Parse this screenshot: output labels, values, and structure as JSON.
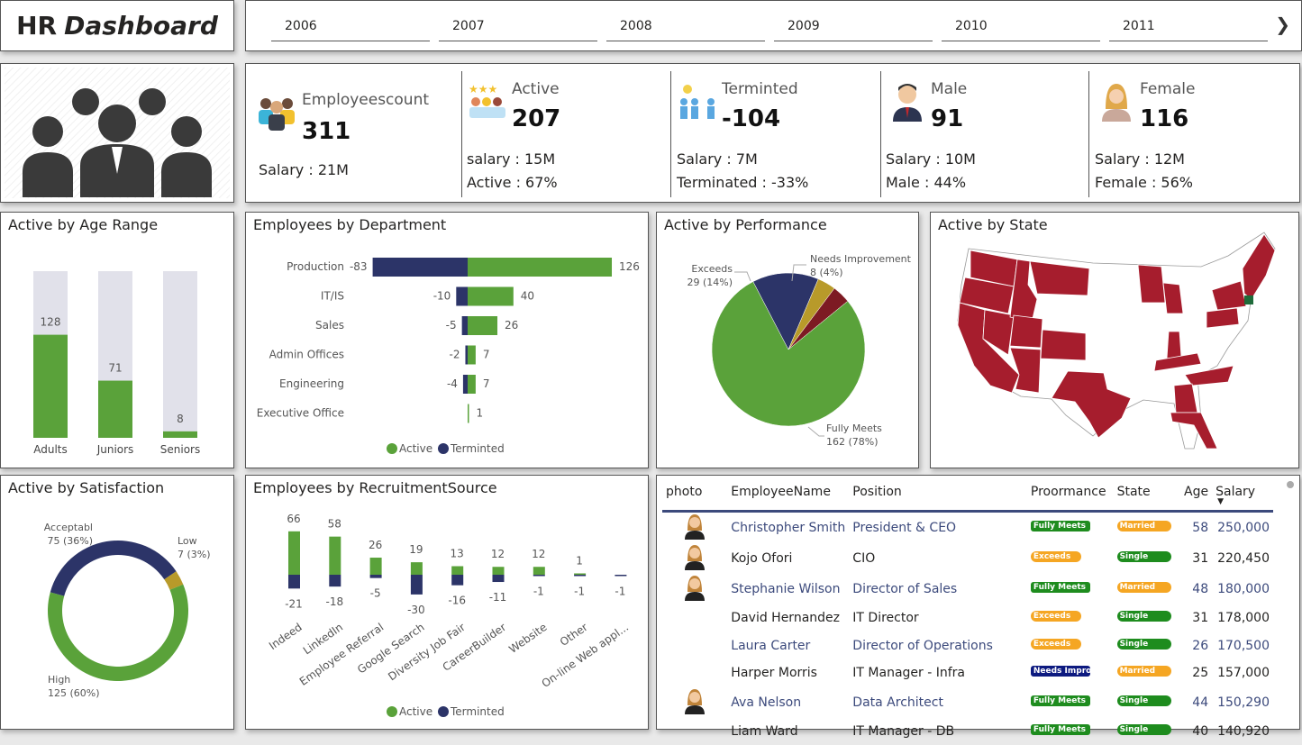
{
  "header": {
    "title_plain": "HR",
    "title_italic": "Dashboard",
    "years": [
      "2006",
      "2007",
      "2008",
      "2009",
      "2010",
      "2011"
    ],
    "next_icon": "chevron-right-icon"
  },
  "kpis": [
    {
      "label": "Employeescount",
      "value": "311",
      "line1": "Salary : 21M",
      "icon": "people-group-icon"
    },
    {
      "label": "Active",
      "value": "207",
      "line1": "salary : 15M",
      "line2": "Active : 67%",
      "icon": "stars-people-icon"
    },
    {
      "label": "Terminted",
      "value": "-104",
      "line1": "Salary : 7M",
      "line2": "Terminated : -33%",
      "icon": "people-transfer-icon"
    },
    {
      "label": "Male",
      "value": "91",
      "line1": "Salary : 10M",
      "line2": "Male : 44%",
      "icon": "male-avatar-icon"
    },
    {
      "label": "Female",
      "value": "116",
      "line1": "Salary : 12M",
      "line2": "Female : 56%",
      "icon": "female-avatar-icon"
    }
  ],
  "colors": {
    "active": "#5aa23a",
    "terminated": "#2c3468",
    "background_bar": "#e1e1ea",
    "map_state": "#a61d2d",
    "needs": "#7d1a23",
    "gold": "#b89a2a"
  },
  "chart_data": [
    {
      "type": "bar",
      "title": "Active by Age Range",
      "categories": [
        "Adults",
        "Juniors",
        "Seniors"
      ],
      "values": [
        128,
        71,
        8
      ],
      "ylim": [
        0,
        207
      ]
    },
    {
      "type": "bar",
      "title": "Employees by Department",
      "orientation": "horizontal",
      "categories": [
        "Production",
        "IT/IS",
        "Sales",
        "Admin Offices",
        "Engineering",
        "Executive Office"
      ],
      "series": [
        {
          "name": "Active",
          "values": [
            126,
            40,
            26,
            7,
            7,
            1
          ]
        },
        {
          "name": "Terminted",
          "values": [
            -83,
            -10,
            -5,
            -2,
            -4,
            null
          ]
        }
      ],
      "legend": "bottom"
    },
    {
      "type": "pie",
      "title": "Active by Performance",
      "slices": [
        {
          "label": "Needs Improvement",
          "value": 8,
          "text": "8 (4%)",
          "color": "#7d1a23"
        },
        {
          "label": "Fully Meets",
          "value": 162,
          "text": "162 (78%)",
          "color": "#5aa23a"
        },
        {
          "label": "Exceeds",
          "value": 29,
          "text": "29 (14%)",
          "color": "#2c3468"
        },
        {
          "label": "",
          "value": 8,
          "text": "",
          "color": "#b89a2a"
        }
      ]
    },
    {
      "type": "pie",
      "title": "Active by Satisfaction",
      "donut": true,
      "slices": [
        {
          "label": "Low",
          "value": 7,
          "text": "7 (3%)",
          "color": "#b89a2a"
        },
        {
          "label": "High",
          "value": 125,
          "text": "125 (60%)",
          "color": "#5aa23a"
        },
        {
          "label": "Acceptabl",
          "value": 75,
          "text": "75 (36%)",
          "color": "#2c3468"
        }
      ]
    },
    {
      "type": "bar",
      "title": "Employees by RecruitmentSource",
      "categories": [
        "Indeed",
        "LinkedIn",
        "Employee Referral",
        "Google Search",
        "Diversity Job Fair",
        "CareerBuilder",
        "Website",
        "Other",
        "On-line Web appl..."
      ],
      "series": [
        {
          "name": "Active",
          "values": [
            66,
            58,
            26,
            19,
            13,
            12,
            12,
            1,
            null
          ]
        },
        {
          "name": "Terminted",
          "values": [
            -21,
            -18,
            -5,
            -30,
            -16,
            -11,
            -1,
            -1,
            -1
          ]
        }
      ],
      "legend": "bottom"
    }
  ],
  "map": {
    "title": "Active by State"
  },
  "table": {
    "columns": [
      "photo",
      "EmployeeName",
      "Position",
      "Proormance",
      "State",
      "Age",
      "Salary"
    ],
    "sort_icon": "sort-desc-icon",
    "rows": [
      {
        "photo": true,
        "name": "Christopher Smith",
        "position": "President & CEO",
        "perf": "Fully Meets",
        "perf_color": "#1e8c1e",
        "state": "Married",
        "state_color": "#f5a623",
        "age": "58",
        "salary": "250,000"
      },
      {
        "photo": true,
        "name": "Kojo Ofori",
        "position": "CIO",
        "perf": "Exceeds",
        "perf_color": "#f5a623",
        "state": "Single",
        "state_color": "#1e8c1e",
        "age": "31",
        "salary": "220,450"
      },
      {
        "photo": true,
        "name": "Stephanie Wilson",
        "position": "Director of Sales",
        "perf": "Fully Meets",
        "perf_color": "#1e8c1e",
        "state": "Married",
        "state_color": "#f5a623",
        "age": "48",
        "salary": "180,000"
      },
      {
        "photo": false,
        "name": "David Hernandez",
        "position": "IT Director",
        "perf": "Exceeds",
        "perf_color": "#f5a623",
        "state": "Single",
        "state_color": "#1e8c1e",
        "age": "31",
        "salary": "178,000"
      },
      {
        "photo": false,
        "name": "Laura Carter",
        "position": "Director of Operations",
        "perf": "Exceeds",
        "perf_color": "#f5a623",
        "state": "Single",
        "state_color": "#1e8c1e",
        "age": "26",
        "salary": "170,500"
      },
      {
        "photo": false,
        "name": "Harper Morris",
        "position": "IT Manager - Infra",
        "perf": "Needs Impro",
        "perf_color": "#0d1a80",
        "state": "Married",
        "state_color": "#f5a623",
        "age": "25",
        "salary": "157,000"
      },
      {
        "photo": true,
        "name": "Ava Nelson",
        "position": "Data Architect",
        "perf": "Fully Meets",
        "perf_color": "#1e8c1e",
        "state": "Single",
        "state_color": "#1e8c1e",
        "age": "44",
        "salary": "150,290"
      },
      {
        "photo": false,
        "name": "Liam Ward",
        "position": "IT Manager - DB",
        "perf": "Fully Meets",
        "perf_color": "#1e8c1e",
        "state": "Single",
        "state_color": "#1e8c1e",
        "age": "40",
        "salary": "140,920"
      }
    ]
  }
}
